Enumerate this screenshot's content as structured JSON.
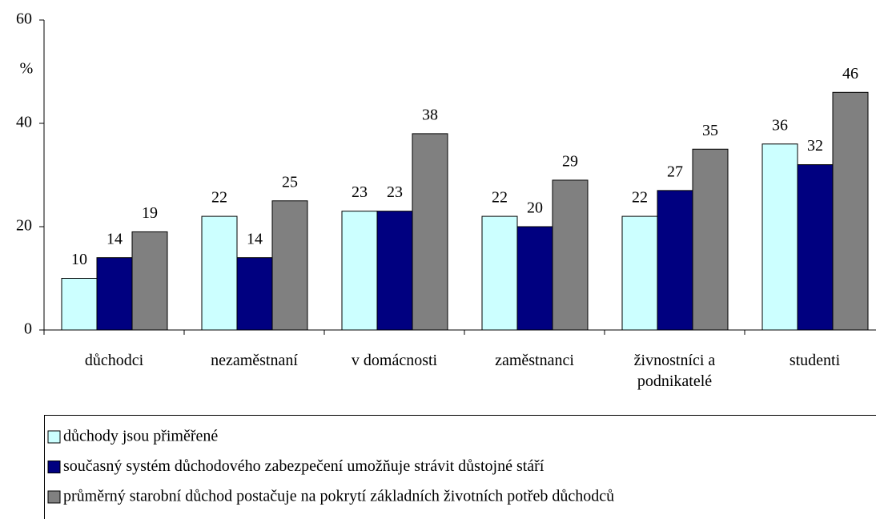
{
  "chart_data": {
    "type": "bar",
    "y_axis_label": "%",
    "categories": [
      "důchodci",
      "nezaměstnaní",
      "v domácnosti",
      "zaměstnanci",
      "živnostníci a podnikatelé",
      "studenti"
    ],
    "series": [
      {
        "name": "důchody jsou přiměřené",
        "color": "#ccffff",
        "values": [
          10,
          22,
          23,
          22,
          22,
          36
        ]
      },
      {
        "name": "současný systém důchodového zabezpečení umožňuje strávit důstojné stáří",
        "color": "#000080",
        "values": [
          14,
          14,
          23,
          20,
          27,
          32
        ]
      },
      {
        "name": "průměrný starobní důchod postačuje na pokrytí základních životních potřeb důchodců",
        "color": "#808080",
        "values": [
          19,
          25,
          38,
          29,
          35,
          46
        ]
      }
    ],
    "ylim": [
      0,
      60
    ],
    "yticks": [
      0,
      20,
      40,
      60
    ],
    "grid": false,
    "legend": "bottom"
  }
}
